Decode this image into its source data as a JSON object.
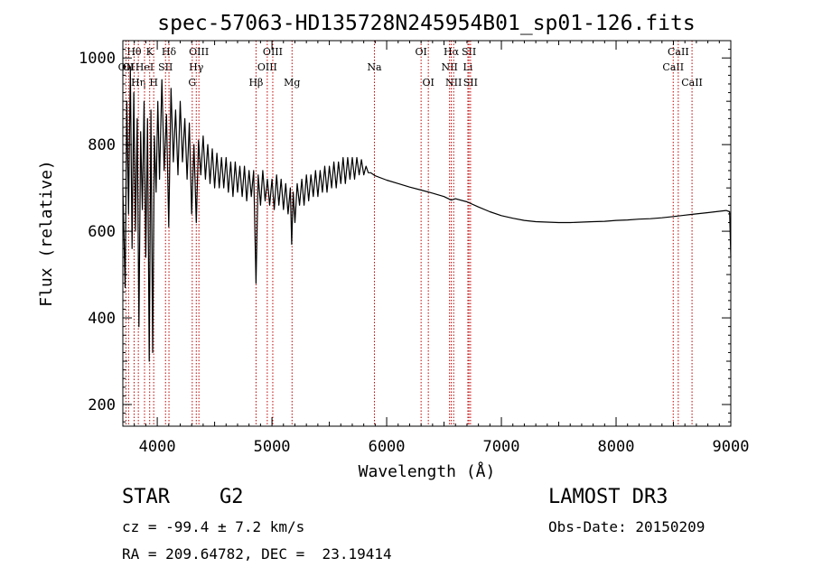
{
  "chart_data": {
    "type": "line",
    "title": "spec-57063-HD135728N245954B01_sp01-126.fits",
    "xlabel": "Wavelength (Å)",
    "ylabel": "Flux (relative)",
    "xlim": [
      3700,
      9000
    ],
    "ylim": [
      150,
      1040
    ],
    "x_ticks": [
      4000,
      5000,
      6000,
      7000,
      8000,
      9000
    ],
    "y_ticks": [
      200,
      400,
      600,
      800,
      1000
    ],
    "series": [
      {
        "name": "flux",
        "points": [
          [
            3700,
            700
          ],
          [
            3720,
            470
          ],
          [
            3735,
            900
          ],
          [
            3750,
            640
          ],
          [
            3765,
            980
          ],
          [
            3780,
            560
          ],
          [
            3795,
            920
          ],
          [
            3810,
            600
          ],
          [
            3825,
            860
          ],
          [
            3840,
            380
          ],
          [
            3855,
            830
          ],
          [
            3870,
            650
          ],
          [
            3885,
            900
          ],
          [
            3900,
            540
          ],
          [
            3915,
            860
          ],
          [
            3930,
            300
          ],
          [
            3945,
            880
          ],
          [
            3960,
            320
          ],
          [
            3975,
            820
          ],
          [
            3990,
            690
          ],
          [
            4005,
            900
          ],
          [
            4020,
            720
          ],
          [
            4040,
            950
          ],
          [
            4060,
            740
          ],
          [
            4080,
            870
          ],
          [
            4100,
            610
          ],
          [
            4120,
            930
          ],
          [
            4140,
            760
          ],
          [
            4160,
            880
          ],
          [
            4180,
            730
          ],
          [
            4200,
            900
          ],
          [
            4220,
            760
          ],
          [
            4240,
            860
          ],
          [
            4260,
            720
          ],
          [
            4280,
            850
          ],
          [
            4300,
            640
          ],
          [
            4320,
            800
          ],
          [
            4340,
            620
          ],
          [
            4360,
            810
          ],
          [
            4380,
            730
          ],
          [
            4400,
            820
          ],
          [
            4420,
            720
          ],
          [
            4440,
            800
          ],
          [
            4460,
            710
          ],
          [
            4480,
            790
          ],
          [
            4500,
            700
          ],
          [
            4520,
            780
          ],
          [
            4540,
            700
          ],
          [
            4560,
            770
          ],
          [
            4580,
            700
          ],
          [
            4600,
            770
          ],
          [
            4620,
            690
          ],
          [
            4640,
            760
          ],
          [
            4660,
            680
          ],
          [
            4680,
            760
          ],
          [
            4700,
            690
          ],
          [
            4720,
            750
          ],
          [
            4740,
            680
          ],
          [
            4760,
            750
          ],
          [
            4780,
            670
          ],
          [
            4800,
            740
          ],
          [
            4820,
            680
          ],
          [
            4840,
            740
          ],
          [
            4861,
            480
          ],
          [
            4880,
            730
          ],
          [
            4900,
            660
          ],
          [
            4920,
            740
          ],
          [
            4940,
            670
          ],
          [
            4960,
            720
          ],
          [
            4980,
            660
          ],
          [
            5000,
            720
          ],
          [
            5020,
            650
          ],
          [
            5040,
            730
          ],
          [
            5060,
            660
          ],
          [
            5080,
            720
          ],
          [
            5100,
            650
          ],
          [
            5120,
            710
          ],
          [
            5140,
            640
          ],
          [
            5160,
            700
          ],
          [
            5172,
            570
          ],
          [
            5185,
            690
          ],
          [
            5200,
            620
          ],
          [
            5220,
            710
          ],
          [
            5240,
            660
          ],
          [
            5260,
            720
          ],
          [
            5280,
            660
          ],
          [
            5300,
            730
          ],
          [
            5320,
            670
          ],
          [
            5340,
            730
          ],
          [
            5360,
            680
          ],
          [
            5380,
            740
          ],
          [
            5400,
            680
          ],
          [
            5420,
            740
          ],
          [
            5440,
            690
          ],
          [
            5460,
            750
          ],
          [
            5480,
            690
          ],
          [
            5500,
            750
          ],
          [
            5520,
            700
          ],
          [
            5540,
            760
          ],
          [
            5560,
            700
          ],
          [
            5580,
            760
          ],
          [
            5600,
            710
          ],
          [
            5620,
            770
          ],
          [
            5640,
            710
          ],
          [
            5660,
            770
          ],
          [
            5680,
            720
          ],
          [
            5700,
            770
          ],
          [
            5720,
            720
          ],
          [
            5740,
            770
          ],
          [
            5760,
            730
          ],
          [
            5780,
            765
          ],
          [
            5800,
            730
          ],
          [
            5820,
            750
          ],
          [
            5840,
            735
          ],
          [
            5860,
            735
          ],
          [
            5900,
            728
          ],
          [
            6000,
            718
          ],
          [
            6100,
            710
          ],
          [
            6200,
            702
          ],
          [
            6300,
            695
          ],
          [
            6400,
            688
          ],
          [
            6500,
            680
          ],
          [
            6563,
            672
          ],
          [
            6600,
            675
          ],
          [
            6700,
            668
          ],
          [
            6800,
            656
          ],
          [
            6900,
            645
          ],
          [
            7000,
            636
          ],
          [
            7100,
            630
          ],
          [
            7200,
            625
          ],
          [
            7300,
            622
          ],
          [
            7400,
            621
          ],
          [
            7500,
            620
          ],
          [
            7600,
            620
          ],
          [
            7700,
            621
          ],
          [
            7800,
            622
          ],
          [
            7900,
            623
          ],
          [
            8000,
            625
          ],
          [
            8100,
            626
          ],
          [
            8200,
            628
          ],
          [
            8300,
            629
          ],
          [
            8400,
            631
          ],
          [
            8500,
            634
          ],
          [
            8600,
            637
          ],
          [
            8700,
            640
          ],
          [
            8800,
            643
          ],
          [
            8900,
            646
          ],
          [
            8960,
            648
          ],
          [
            8990,
            645
          ],
          [
            9000,
            540
          ]
        ]
      }
    ],
    "lines": [
      {
        "label": "OII",
        "x": 3727,
        "row": 2
      },
      {
        "label": "Hθ",
        "x": 3798,
        "row": 1
      },
      {
        "label": "OI",
        "x": 3750,
        "row": 2
      },
      {
        "label": "Hη",
        "x": 3835,
        "row": 3
      },
      {
        "label": "HeI",
        "x": 3889,
        "row": 2
      },
      {
        "label": "K",
        "x": 3934,
        "row": 1
      },
      {
        "label": "H",
        "x": 3969,
        "row": 3
      },
      {
        "label": "SII",
        "x": 4072,
        "row": 2
      },
      {
        "label": "Hδ",
        "x": 4102,
        "row": 1
      },
      {
        "label": "OIII",
        "x": 4363,
        "row": 1
      },
      {
        "label": "Hγ",
        "x": 4340,
        "row": 2
      },
      {
        "label": "G",
        "x": 4305,
        "row": 3
      },
      {
        "label": "Hβ",
        "x": 4861,
        "row": 3
      },
      {
        "label": "OIII",
        "x": 4959,
        "row": 2
      },
      {
        "label": "OIII",
        "x": 5007,
        "row": 1
      },
      {
        "label": "Mg",
        "x": 5175,
        "row": 3
      },
      {
        "label": "Na",
        "x": 5893,
        "row": 2
      },
      {
        "label": "OI",
        "x": 6300,
        "row": 1
      },
      {
        "label": "OI",
        "x": 6363,
        "row": 3
      },
      {
        "label": "NII",
        "x": 6548,
        "row": 2
      },
      {
        "label": "Hα",
        "x": 6563,
        "row": 1
      },
      {
        "label": "NII",
        "x": 6584,
        "row": 3
      },
      {
        "label": "SII",
        "x": 6717,
        "row": 1
      },
      {
        "label": "Li",
        "x": 6708,
        "row": 2
      },
      {
        "label": "SII",
        "x": 6731,
        "row": 3
      },
      {
        "label": "CaII",
        "x": 8498,
        "row": 2
      },
      {
        "label": "CaII",
        "x": 8542,
        "row": 1
      },
      {
        "label": "CaII",
        "x": 8662,
        "row": 3
      }
    ]
  },
  "info": {
    "object_class": "STAR",
    "subclass": "G2",
    "survey": "LAMOST DR3",
    "redshift_text": "cz = -99.4 ± 7.2 km/s",
    "obs_date_text": "Obs-Date: 20150209",
    "coords_text": "RA = 209.64782, DEC =  23.19414"
  },
  "colors": {
    "spectrum": "#000000",
    "line_markers": "#c00000",
    "axes": "#000000"
  }
}
